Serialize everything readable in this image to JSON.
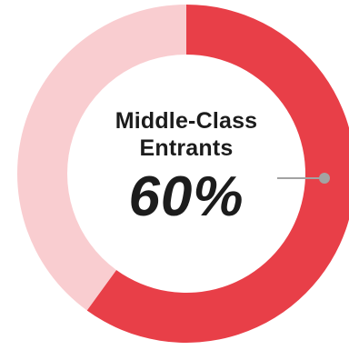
{
  "chart_data": {
    "type": "pie",
    "style": "donut",
    "title": "",
    "center_label": "Middle-Class Entrants",
    "center_value": "60%",
    "slices": [
      {
        "name": "",
        "value": 60,
        "color": "#e83f48"
      },
      {
        "name": "",
        "value": 40,
        "color": "#f9cdd0"
      }
    ],
    "legend": "none",
    "marker_color": "#a3a3a3"
  }
}
